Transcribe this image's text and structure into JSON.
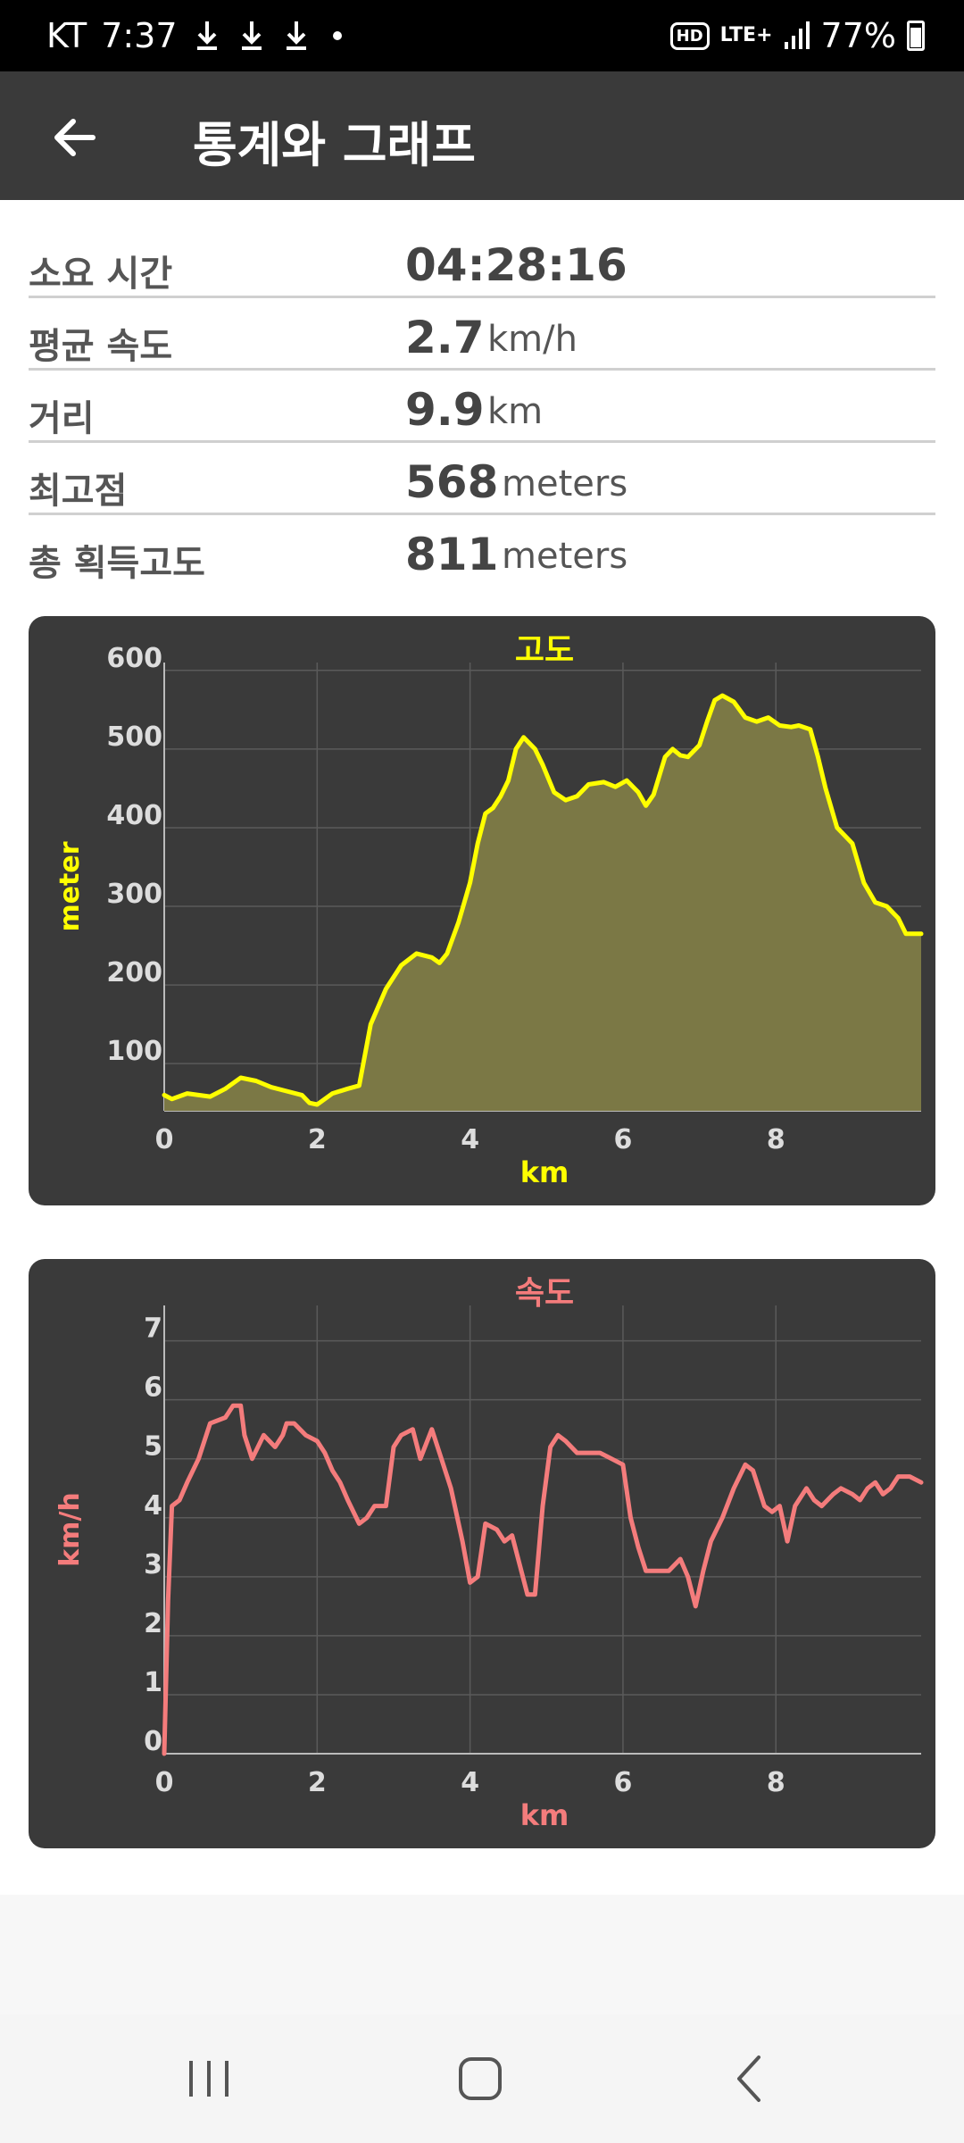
{
  "status_bar": {
    "carrier": "KT",
    "time": "7:37",
    "network": "LTE+",
    "battery": "77%",
    "hd_badge": "HD"
  },
  "app_bar": {
    "title": "통계와 그래프",
    "back_icon": "arrow-left-icon"
  },
  "stats": [
    {
      "label": "소요 시간",
      "value": "04:28:16",
      "unit": ""
    },
    {
      "label": "평균 속도",
      "value": "2.7",
      "unit": "km/h"
    },
    {
      "label": "거리",
      "value": "9.9",
      "unit": "km"
    },
    {
      "label": "최고점",
      "value": "568",
      "unit": "meters"
    },
    {
      "label": "총 획득고도",
      "value": "811",
      "unit": "meters"
    }
  ],
  "chart_data": [
    {
      "type": "area",
      "title": "고도",
      "xlabel": "km",
      "ylabel": "meter",
      "color": "#ffff00",
      "fill": "#7b7845",
      "xlim": [
        0,
        9.9
      ],
      "ylim": [
        40,
        610
      ],
      "xticks": [
        0,
        2,
        4,
        6,
        8
      ],
      "yticks": [
        100,
        200,
        300,
        400,
        500,
        600
      ],
      "grid": true,
      "x": [
        0,
        0.1,
        0.3,
        0.6,
        0.8,
        1.0,
        1.2,
        1.4,
        1.6,
        1.8,
        1.9,
        2.0,
        2.2,
        2.4,
        2.55,
        2.7,
        2.9,
        3.1,
        3.3,
        3.5,
        3.6,
        3.7,
        3.85,
        4.0,
        4.1,
        4.2,
        4.3,
        4.4,
        4.5,
        4.6,
        4.7,
        4.85,
        4.95,
        5.1,
        5.25,
        5.4,
        5.55,
        5.75,
        5.9,
        6.05,
        6.2,
        6.3,
        6.4,
        6.55,
        6.65,
        6.75,
        6.85,
        7.0,
        7.1,
        7.2,
        7.3,
        7.45,
        7.6,
        7.75,
        7.9,
        8.05,
        8.2,
        8.3,
        8.45,
        8.55,
        8.65,
        8.8,
        9.0,
        9.15,
        9.3,
        9.45,
        9.6,
        9.7,
        9.9
      ],
      "y": [
        60,
        55,
        62,
        58,
        68,
        82,
        78,
        70,
        65,
        60,
        50,
        48,
        62,
        68,
        72,
        150,
        195,
        225,
        240,
        235,
        228,
        240,
        280,
        330,
        380,
        418,
        425,
        440,
        460,
        500,
        515,
        500,
        480,
        445,
        435,
        440,
        455,
        458,
        452,
        460,
        445,
        428,
        442,
        490,
        500,
        492,
        490,
        505,
        535,
        562,
        568,
        560,
        540,
        535,
        540,
        530,
        528,
        530,
        525,
        490,
        450,
        400,
        380,
        330,
        305,
        300,
        285,
        265,
        265
      ]
    },
    {
      "type": "line",
      "title": "속도",
      "xlabel": "km",
      "ylabel": "km/h",
      "color": "#f47c7c",
      "xlim": [
        0,
        9.9
      ],
      "ylim": [
        0,
        7.6
      ],
      "xticks": [
        0,
        2,
        4,
        6,
        8
      ],
      "yticks": [
        0,
        1,
        2,
        3,
        4,
        5,
        6,
        7
      ],
      "grid": true,
      "x": [
        0,
        0.05,
        0.1,
        0.2,
        0.3,
        0.45,
        0.6,
        0.8,
        0.9,
        1.0,
        1.05,
        1.15,
        1.3,
        1.45,
        1.55,
        1.6,
        1.7,
        1.85,
        2.0,
        2.1,
        2.2,
        2.3,
        2.4,
        2.55,
        2.65,
        2.75,
        2.9,
        3.0,
        3.1,
        3.25,
        3.35,
        3.5,
        3.6,
        3.75,
        3.9,
        4.0,
        4.1,
        4.2,
        4.35,
        4.45,
        4.55,
        4.65,
        4.75,
        4.85,
        4.95,
        5.05,
        5.15,
        5.25,
        5.4,
        5.55,
        5.7,
        5.85,
        6.0,
        6.1,
        6.2,
        6.3,
        6.45,
        6.6,
        6.75,
        6.85,
        6.95,
        7.05,
        7.15,
        7.3,
        7.45,
        7.6,
        7.7,
        7.85,
        7.95,
        8.05,
        8.15,
        8.25,
        8.4,
        8.5,
        8.6,
        8.75,
        8.85,
        9.0,
        9.1,
        9.2,
        9.3,
        9.4,
        9.5,
        9.6,
        9.75,
        9.9
      ],
      "y": [
        0,
        2.6,
        4.2,
        4.3,
        4.6,
        5.0,
        5.6,
        5.7,
        5.9,
        5.9,
        5.4,
        5.0,
        5.4,
        5.2,
        5.4,
        5.6,
        5.6,
        5.4,
        5.3,
        5.1,
        4.8,
        4.6,
        4.3,
        3.9,
        4.0,
        4.2,
        4.2,
        5.2,
        5.4,
        5.5,
        5.0,
        5.5,
        5.1,
        4.5,
        3.6,
        2.9,
        3.0,
        3.9,
        3.8,
        3.6,
        3.7,
        3.2,
        2.7,
        2.7,
        4.2,
        5.2,
        5.4,
        5.3,
        5.1,
        5.1,
        5.1,
        5.0,
        4.9,
        4.0,
        3.5,
        3.1,
        3.1,
        3.1,
        3.3,
        3.0,
        2.5,
        3.1,
        3.6,
        4.0,
        4.5,
        4.9,
        4.8,
        4.2,
        4.1,
        4.2,
        3.6,
        4.2,
        4.5,
        4.3,
        4.2,
        4.4,
        4.5,
        4.4,
        4.3,
        4.5,
        4.6,
        4.4,
        4.5,
        4.7,
        4.7,
        4.6
      ]
    }
  ],
  "nav_bar": {
    "recents_icon": "recents-icon",
    "home_icon": "home-icon",
    "back_icon": "nav-back-icon"
  }
}
